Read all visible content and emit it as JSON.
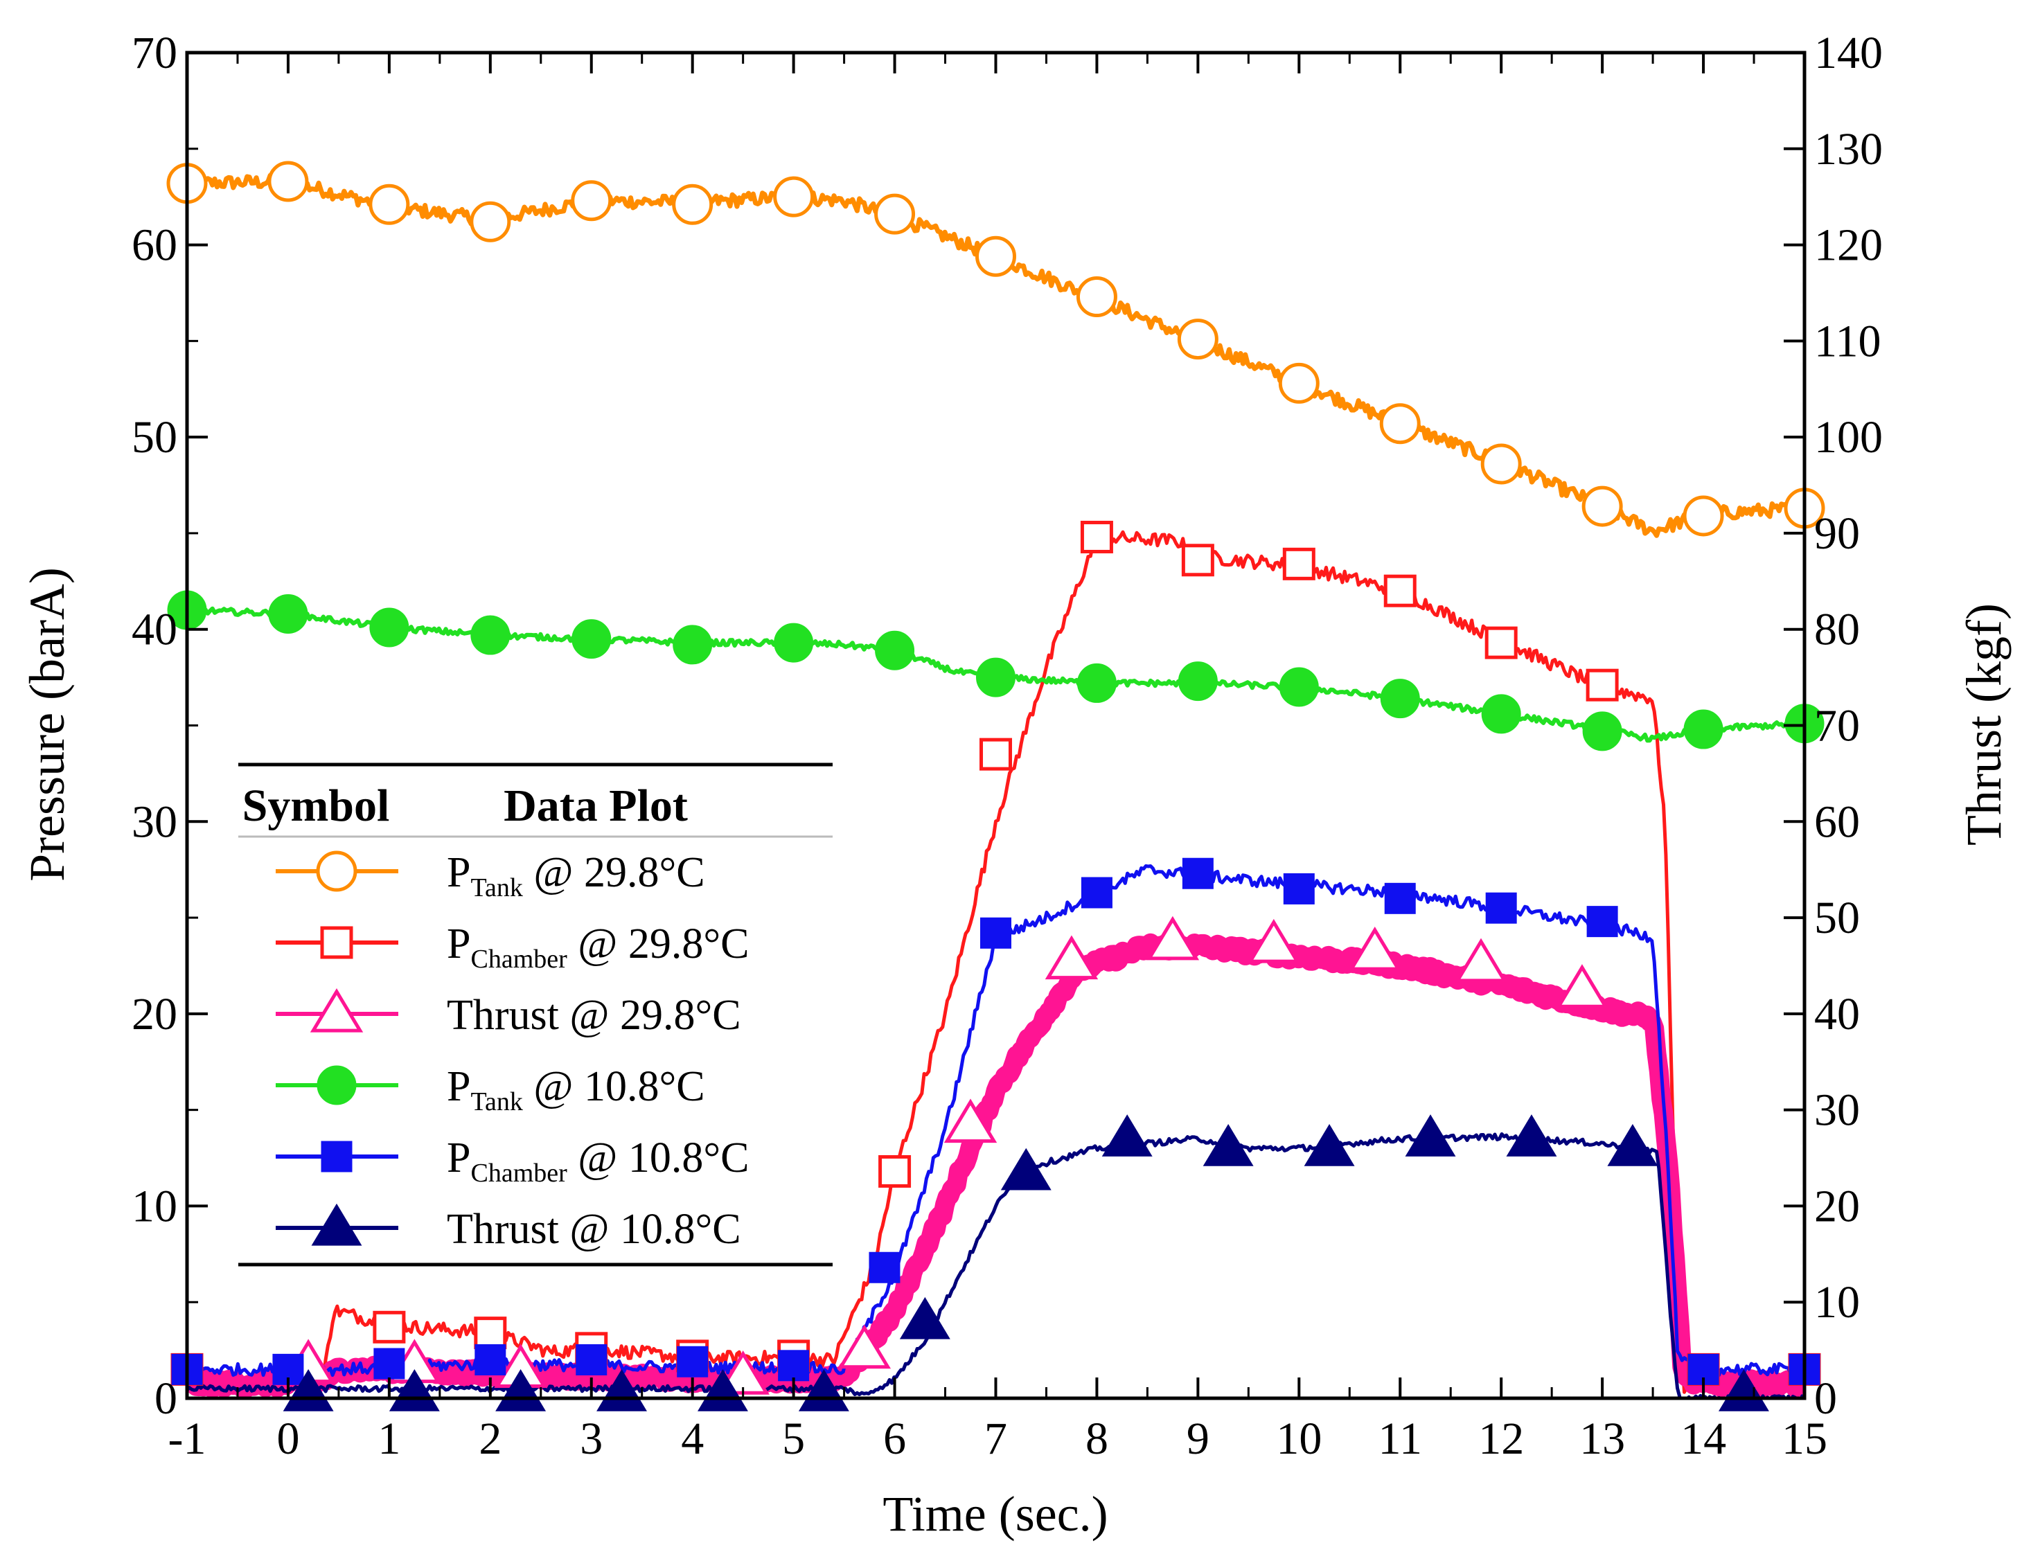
{
  "chart_data": {
    "type": "line",
    "xlabel": "Time (sec.)",
    "ylabel": "Pressure (barA)",
    "y2label": "Thrust (kgf)",
    "xlim": [
      -1,
      15
    ],
    "ylim": [
      0,
      70
    ],
    "y2lim": [
      0,
      140
    ],
    "xticks": [
      "-1",
      "0",
      "1",
      "2",
      "3",
      "4",
      "5",
      "6",
      "7",
      "8",
      "9",
      "10",
      "11",
      "12",
      "13",
      "14",
      "15"
    ],
    "yticks": [
      "0",
      "10",
      "20",
      "30",
      "40",
      "50",
      "60",
      "70"
    ],
    "y2ticks": [
      "0",
      "10",
      "20",
      "30",
      "40",
      "50",
      "60",
      "70",
      "80",
      "90",
      "100",
      "110",
      "120",
      "130",
      "140"
    ],
    "legend": {
      "position": "left-middle",
      "header_symbol": "Symbol",
      "header_plot": "Data Plot",
      "entries": [
        {
          "main": "P",
          "sub": "Tank",
          "rest": " @ 29.8°C"
        },
        {
          "main": "P",
          "sub": "Chamber",
          "rest": " @ 29.8°C"
        },
        {
          "main": "Thrust",
          "sub": "",
          "rest": " @ 29.8°C"
        },
        {
          "main": "P",
          "sub": "Tank",
          "rest": " @ 10.8°C"
        },
        {
          "main": "P",
          "sub": "Chamber",
          "rest": " @ 10.8°C"
        },
        {
          "main": "Thrust",
          "sub": "",
          "rest": " @ 10.8°C"
        }
      ]
    },
    "series": [
      {
        "name": "P_Tank @ 29.8°C",
        "axis": "left",
        "color": "#FF8C00",
        "marker": "circle-open",
        "width": 7,
        "noise": 0.35,
        "line": [
          [
            -1,
            63.2
          ],
          [
            0,
            63.3
          ],
          [
            1,
            62
          ],
          [
            2,
            61.3
          ],
          [
            3,
            62.3
          ],
          [
            4,
            62.2
          ],
          [
            5,
            62.5
          ],
          [
            5.5,
            62.3
          ],
          [
            6,
            61.5
          ],
          [
            7,
            59.4
          ],
          [
            8,
            57.2
          ],
          [
            9,
            55
          ],
          [
            10,
            52.8
          ],
          [
            11,
            50.7
          ],
          [
            12,
            48.7
          ],
          [
            13,
            46.4
          ],
          [
            13.5,
            45.1
          ],
          [
            14,
            46
          ],
          [
            15,
            46.3
          ]
        ],
        "markers": [
          [
            -1,
            63.2
          ],
          [
            0,
            63.3
          ],
          [
            1,
            62.1
          ],
          [
            2,
            61.2
          ],
          [
            3,
            62.3
          ],
          [
            4,
            62.1
          ],
          [
            5,
            62.5
          ],
          [
            6,
            61.6
          ],
          [
            7,
            59.4
          ],
          [
            8,
            57.3
          ],
          [
            9,
            55.1
          ],
          [
            10,
            52.8
          ],
          [
            11,
            50.7
          ],
          [
            12,
            48.6
          ],
          [
            13,
            46.4
          ],
          [
            14,
            45.9
          ],
          [
            15,
            46.3
          ]
        ]
      },
      {
        "name": "P_Chamber @ 29.8°C",
        "axis": "left",
        "color": "#FF1A1A",
        "marker": "square-open",
        "width": 5,
        "noise": 0.35,
        "line": [
          [
            -1,
            1
          ],
          [
            0.35,
            1
          ],
          [
            0.45,
            4.6
          ],
          [
            1,
            3.8
          ],
          [
            2,
            3.4
          ],
          [
            2.6,
            2.4
          ],
          [
            3,
            2.6
          ],
          [
            4,
            2.1
          ],
          [
            5,
            2.1
          ],
          [
            5.4,
            2
          ],
          [
            5.8,
            7
          ],
          [
            6,
            11.8
          ],
          [
            6.5,
            20
          ],
          [
            7,
            30
          ],
          [
            7.5,
            38
          ],
          [
            8,
            44.8
          ],
          [
            8.8,
            44.6
          ],
          [
            9,
            43.8
          ],
          [
            10,
            43.3
          ],
          [
            11,
            42
          ],
          [
            12,
            39.4
          ],
          [
            13,
            37
          ],
          [
            13.5,
            36.4
          ],
          [
            13.62,
            30
          ],
          [
            13.72,
            10
          ],
          [
            13.8,
            0.5
          ],
          [
            14,
            1.2
          ],
          [
            15,
            1
          ]
        ],
        "markers": [
          [
            -1,
            1.5
          ],
          [
            1,
            3.7
          ],
          [
            2,
            3.4
          ],
          [
            3,
            2.6
          ],
          [
            4,
            2.2
          ],
          [
            5,
            2.2
          ],
          [
            6,
            11.8
          ],
          [
            7,
            33.5
          ],
          [
            8,
            44.8
          ],
          [
            9,
            43.6
          ],
          [
            10,
            43.4
          ],
          [
            11,
            42
          ],
          [
            12,
            39.3
          ],
          [
            13,
            37.1
          ],
          [
            14,
            1.5
          ],
          [
            15,
            1.5
          ]
        ]
      },
      {
        "name": "Thrust @ 29.8°C",
        "axis": "right",
        "color": "#FF1493",
        "marker": "triangle-open",
        "width": 28,
        "noise": 0.5,
        "line": [
          [
            -1,
            1.5
          ],
          [
            0.3,
            1.5
          ],
          [
            0.5,
            3
          ],
          [
            1,
            3
          ],
          [
            2,
            2.5
          ],
          [
            3,
            2.2
          ],
          [
            4,
            2
          ],
          [
            5,
            2
          ],
          [
            5.5,
            2
          ],
          [
            6,
            9
          ],
          [
            6.5,
            20
          ],
          [
            7,
            32
          ],
          [
            7.5,
            40
          ],
          [
            7.8,
            44.5
          ],
          [
            8.5,
            47
          ],
          [
            9,
            47
          ],
          [
            10,
            46
          ],
          [
            11,
            45
          ],
          [
            12,
            43
          ],
          [
            13,
            40.5
          ],
          [
            13.5,
            39.5
          ],
          [
            13.65,
            25
          ],
          [
            13.8,
            2
          ],
          [
            14,
            1.5
          ],
          [
            15,
            1.5
          ]
        ],
        "markers": [
          [
            0.2,
            3.5
          ],
          [
            1.25,
            3.5
          ],
          [
            2.3,
            3
          ],
          [
            4.5,
            2.3
          ],
          [
            5.7,
            5
          ],
          [
            6.75,
            28.5
          ],
          [
            7.75,
            45.5
          ],
          [
            8.75,
            47.5
          ],
          [
            9.75,
            47.2
          ],
          [
            10.75,
            46.4
          ],
          [
            11.8,
            45.2
          ],
          [
            12.8,
            42.5
          ]
        ]
      },
      {
        "name": "P_Tank @ 10.8°C",
        "axis": "left",
        "color": "#22E022",
        "marker": "circle-filled",
        "width": 6,
        "noise": 0.15,
        "line": [
          [
            -1,
            41
          ],
          [
            0,
            40.8
          ],
          [
            1,
            40.1
          ],
          [
            2,
            39.7
          ],
          [
            3,
            39.5
          ],
          [
            4,
            39.3
          ],
          [
            5,
            39.3
          ],
          [
            5.5,
            39.2
          ],
          [
            6,
            38.9
          ],
          [
            6.6,
            37.8
          ],
          [
            7,
            37.5
          ],
          [
            8,
            37.2
          ],
          [
            9,
            37.2
          ],
          [
            10,
            37
          ],
          [
            11,
            36.4
          ],
          [
            12,
            35.6
          ],
          [
            13,
            34.8
          ],
          [
            13.5,
            34.3
          ],
          [
            14,
            34.8
          ],
          [
            15,
            35.1
          ]
        ],
        "markers": [
          [
            -1,
            41
          ],
          [
            0,
            40.8
          ],
          [
            1,
            40.1
          ],
          [
            2,
            39.7
          ],
          [
            3,
            39.5
          ],
          [
            4,
            39.2
          ],
          [
            5,
            39.3
          ],
          [
            6,
            38.9
          ],
          [
            7,
            37.5
          ],
          [
            8,
            37.2
          ],
          [
            9,
            37.3
          ],
          [
            10,
            37
          ],
          [
            11,
            36.4
          ],
          [
            12,
            35.6
          ],
          [
            13,
            34.7
          ],
          [
            14,
            34.8
          ],
          [
            15,
            35.1
          ]
        ]
      },
      {
        "name": "P_Chamber @ 10.8°C",
        "axis": "left",
        "color": "#1010F0",
        "marker": "square-filled",
        "width": 5,
        "noise": 0.3,
        "line": [
          [
            -1,
            1.5
          ],
          [
            0.5,
            1.5
          ],
          [
            1,
            1.6
          ],
          [
            2,
            1.8
          ],
          [
            3,
            1.7
          ],
          [
            4,
            1.6
          ],
          [
            5,
            1.6
          ],
          [
            5.5,
            1.5
          ],
          [
            6,
            6.5
          ],
          [
            6.5,
            14
          ],
          [
            7,
            24
          ],
          [
            7.5,
            25
          ],
          [
            8,
            26.3
          ],
          [
            8.5,
            27.5
          ],
          [
            9,
            27.2
          ],
          [
            10,
            26.7
          ],
          [
            11,
            26.3
          ],
          [
            12,
            25.5
          ],
          [
            13,
            24.6
          ],
          [
            13.5,
            24
          ],
          [
            13.65,
            12
          ],
          [
            13.75,
            2
          ],
          [
            14,
            1.5
          ],
          [
            15,
            1.5
          ]
        ],
        "markers": [
          [
            -1,
            1.5
          ],
          [
            0,
            1.5
          ],
          [
            1,
            1.8
          ],
          [
            2,
            2
          ],
          [
            3,
            2
          ],
          [
            4,
            1.9
          ],
          [
            5,
            1.7
          ],
          [
            5.9,
            6.8
          ],
          [
            7,
            24.2
          ],
          [
            8,
            26.3
          ],
          [
            9,
            27.3
          ],
          [
            10,
            26.5
          ],
          [
            11,
            26
          ],
          [
            12,
            25.5
          ],
          [
            13,
            24.8
          ],
          [
            14,
            1.5
          ],
          [
            15,
            1.5
          ]
        ]
      },
      {
        "name": "Thrust @ 10.8°C",
        "axis": "right",
        "color": "#00007A",
        "marker": "triangle-filled",
        "width": 5,
        "noise": 0.3,
        "line": [
          [
            -1,
            1
          ],
          [
            5.5,
            1
          ],
          [
            5.7,
            0.3
          ],
          [
            6,
            2
          ],
          [
            6.3,
            6
          ],
          [
            6.6,
            12
          ],
          [
            7,
            20
          ],
          [
            7.3,
            24
          ],
          [
            7.5,
            24.5
          ],
          [
            8,
            26
          ],
          [
            8.5,
            26.5
          ],
          [
            9,
            27
          ],
          [
            9.5,
            26
          ],
          [
            10,
            26
          ],
          [
            10.5,
            26.5
          ],
          [
            11,
            27
          ],
          [
            12,
            27.2
          ],
          [
            13,
            26.5
          ],
          [
            13.55,
            25.5
          ],
          [
            13.68,
            8
          ],
          [
            13.75,
            0
          ],
          [
            15,
            0
          ]
        ],
        "markers": [
          [
            0.2,
            0.5
          ],
          [
            1.25,
            0.5
          ],
          [
            2.3,
            0.5
          ],
          [
            3.3,
            0.5
          ],
          [
            4.3,
            0.5
          ],
          [
            5.3,
            0.5
          ],
          [
            6.3,
            8
          ],
          [
            7.3,
            23.5
          ],
          [
            8.3,
            27
          ],
          [
            9.3,
            26
          ],
          [
            10.3,
            26
          ],
          [
            11.3,
            27
          ],
          [
            12.3,
            27
          ],
          [
            13.3,
            26
          ],
          [
            14.4,
            0.5
          ]
        ]
      }
    ]
  }
}
